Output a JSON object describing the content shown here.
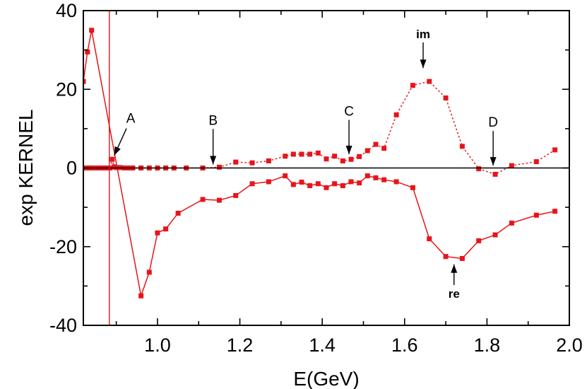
{
  "chart_data": {
    "type": "scatter",
    "xlabel": "E(GeV)",
    "ylabel": "exp KERNEL",
    "xlim": [
      0.82,
      2.0
    ],
    "ylim": [
      -40,
      40
    ],
    "xticks": [
      1.0,
      1.2,
      1.4,
      1.6,
      1.8,
      2.0
    ],
    "xtick_labels": [
      "1.0",
      "1.2",
      "1.4",
      "1.6",
      "1.8",
      "2.0"
    ],
    "yticks": [
      -40,
      -20,
      0,
      20,
      40
    ],
    "ytick_labels": [
      "-40",
      "-20",
      "0",
      "20",
      "40"
    ],
    "grid": false,
    "legend": "none",
    "color": "#e8141b",
    "vertical_line_x": 0.883,
    "series": [
      {
        "key": "im",
        "style": "dotted",
        "x": [
          0.82,
          0.83,
          0.84,
          0.85,
          0.86,
          0.87,
          0.875,
          0.88,
          0.885,
          0.89,
          0.895,
          0.9,
          0.91,
          0.92,
          0.93,
          0.94,
          0.96,
          0.98,
          1.0,
          1.02,
          1.04,
          1.07,
          1.11,
          1.15,
          1.19,
          1.23,
          1.27,
          1.31,
          1.33,
          1.35,
          1.37,
          1.39,
          1.41,
          1.43,
          1.45,
          1.47,
          1.49,
          1.51,
          1.53,
          1.55,
          1.58,
          1.62,
          1.66,
          1.7,
          1.74,
          1.78,
          1.82,
          1.86,
          1.92,
          1.965
        ],
        "y": [
          0,
          0,
          0,
          0,
          0,
          0,
          0,
          0,
          0,
          2.2,
          0.3,
          0.1,
          0.1,
          0,
          0,
          0,
          0,
          0,
          0,
          0,
          0,
          0,
          0,
          0.2,
          1.5,
          1.3,
          1.8,
          3.0,
          3.5,
          3.5,
          3.5,
          3.8,
          2.3,
          3.0,
          1.8,
          2.2,
          2.9,
          4.4,
          6.0,
          5.0,
          13.5,
          21.0,
          22.0,
          17.8,
          5.5,
          -0.2,
          -1.6,
          0.6,
          1.6,
          4.6
        ]
      },
      {
        "key": "re",
        "style": "solid",
        "x": [
          0.82,
          0.83,
          0.84,
          0.96,
          0.98,
          1.0,
          1.02,
          1.05,
          1.11,
          1.15,
          1.19,
          1.23,
          1.27,
          1.31,
          1.33,
          1.35,
          1.37,
          1.39,
          1.41,
          1.43,
          1.45,
          1.47,
          1.49,
          1.51,
          1.53,
          1.55,
          1.58,
          1.62,
          1.66,
          1.7,
          1.74,
          1.78,
          1.82,
          1.86,
          1.92,
          1.965
        ],
        "y": [
          22.0,
          29.5,
          35.0,
          -32.5,
          -26.5,
          -16.5,
          -15.5,
          -11.5,
          -8.0,
          -8.2,
          -7.0,
          -4.0,
          -3.5,
          -2.0,
          -4.2,
          -3.6,
          -4.5,
          -4.0,
          -5.0,
          -4.0,
          -4.5,
          -3.5,
          -3.8,
          -2.0,
          -2.5,
          -3.0,
          -3.5,
          -5.0,
          -18.0,
          -22.5,
          -23.0,
          -18.5,
          -17.0,
          -14.0,
          -12.0,
          -11.0
        ]
      }
    ],
    "annotations": [
      {
        "text": "A",
        "x": 0.935,
        "y": 11.5,
        "arrow_to": [
          0.895,
          3.2
        ],
        "bold": false
      },
      {
        "text": "B",
        "x": 1.135,
        "y": 11.0,
        "arrow_to": [
          1.135,
          0.9
        ],
        "bold": false
      },
      {
        "text": "C",
        "x": 1.465,
        "y": 13.3,
        "arrow_to": [
          1.465,
          3.5
        ],
        "bold": false
      },
      {
        "text": "D",
        "x": 1.815,
        "y": 10.5,
        "arrow_to": [
          1.815,
          0.6
        ],
        "bold": false
      },
      {
        "text": "im",
        "x": 1.645,
        "y": 33.0,
        "arrow_to": [
          1.645,
          25.4
        ],
        "bold": true
      },
      {
        "text": "re",
        "x": 1.72,
        "y": -33.0,
        "arrow_to": [
          1.72,
          -24.5
        ],
        "bold": true
      }
    ]
  }
}
